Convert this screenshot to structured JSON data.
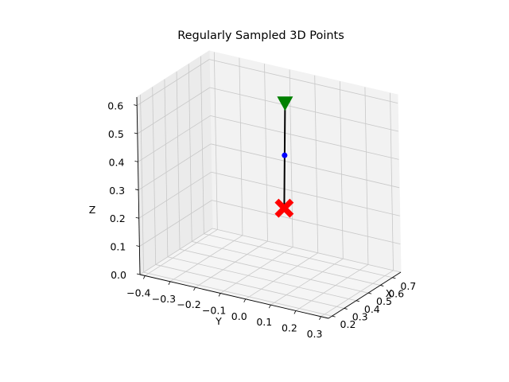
{
  "chart_data": {
    "type": "scatter",
    "projection": "3d",
    "title": "Regularly Sampled 3D Points",
    "xlabel": "X",
    "ylabel": "Y",
    "zlabel": "Z",
    "xticks": [
      "0.2",
      "0.3",
      "0.4",
      "0.5",
      "0.6",
      "0.7"
    ],
    "yticks": [
      "−0.4",
      "−0.3",
      "−0.2",
      "−0.1",
      "0.0",
      "0.1",
      "0.2",
      "0.3"
    ],
    "zticks": [
      "0.0",
      "0.1",
      "0.2",
      "0.3",
      "0.4",
      "0.5",
      "0.6"
    ],
    "xlim": [
      0.17,
      0.77
    ],
    "ylim": [
      -0.42,
      0.33
    ],
    "zlim": [
      0.0,
      0.63
    ],
    "grid": true,
    "path": {
      "color": "#000000",
      "points": [
        {
          "x": 0.42,
          "y": 0.05,
          "z": 0.63
        },
        {
          "x": 0.45,
          "y": 0.03,
          "z": 0.44
        },
        {
          "x": 0.48,
          "y": 0.01,
          "z": 0.24
        }
      ]
    },
    "markers": [
      {
        "role": "start",
        "shape": "triangle-down",
        "color": "#008000",
        "x": 0.42,
        "y": 0.05,
        "z": 0.63
      },
      {
        "role": "sample",
        "shape": "circle",
        "color": "#0000ff",
        "x": 0.45,
        "y": 0.03,
        "z": 0.44
      },
      {
        "role": "end",
        "shape": "x",
        "color": "#ff0000",
        "x": 0.48,
        "y": 0.01,
        "z": 0.24
      }
    ]
  }
}
